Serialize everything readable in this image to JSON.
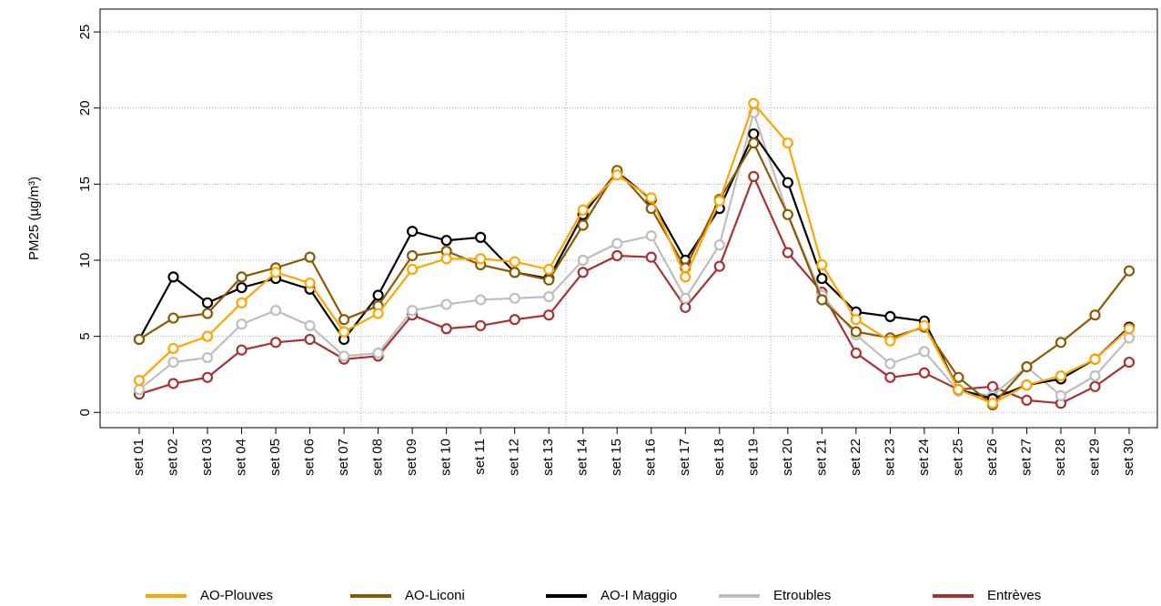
{
  "chart_data": {
    "type": "line",
    "y_label": "PM25 (µg/m³)",
    "categories": [
      "set 01",
      "set 02",
      "set 03",
      "set 04",
      "set 05",
      "set 06",
      "set 07",
      "set 08",
      "set 09",
      "set 10",
      "set 11",
      "set 12",
      "set 13",
      "set 14",
      "set 15",
      "set 16",
      "set 17",
      "set 18",
      "set 19",
      "set 20",
      "set 21",
      "set 22",
      "set 23",
      "set 24",
      "set 25",
      "set 26",
      "set 27",
      "set 28",
      "set 29",
      "set 30"
    ],
    "ylim": [
      -1.0,
      26.5
    ],
    "yticks": [
      0,
      5,
      10,
      15,
      20,
      25
    ],
    "grid": true,
    "legend": "bottom",
    "series": [
      {
        "name": "AO-Plouves",
        "color": "#ffa500",
        "values": [
          2.1,
          4.2,
          5.0,
          7.2,
          9.2,
          8.5,
          5.3,
          6.5,
          9.4,
          10.1,
          10.1,
          9.9,
          9.4,
          13.3,
          15.6,
          14.1,
          8.9,
          13.9,
          20.3,
          17.7,
          9.7,
          6.1,
          4.7,
          5.7,
          1.5,
          0.6,
          1.8,
          2.4,
          3.5,
          5.5
        ]
      },
      {
        "name": "AO-Liconi",
        "color": "#8b5a00",
        "values": [
          4.8,
          6.2,
          6.5,
          8.9,
          9.5,
          10.2,
          6.1,
          7.0,
          10.3,
          10.6,
          9.7,
          9.2,
          8.7,
          12.3,
          15.9,
          13.4,
          9.5,
          14.0,
          17.7,
          13.0,
          7.4,
          5.3,
          4.9,
          5.6,
          2.3,
          0.5,
          3.0,
          4.6,
          6.4,
          9.3
        ]
      },
      {
        "name": "AO-I Maggio",
        "color": "#000000",
        "values": [
          4.8,
          8.9,
          7.2,
          8.2,
          8.8,
          8.1,
          4.8,
          7.7,
          11.9,
          11.3,
          11.5,
          9.2,
          8.8,
          13.0,
          15.8,
          14.0,
          10.0,
          13.4,
          18.3,
          15.1,
          8.8,
          6.6,
          6.3,
          6.0,
          1.5,
          0.9,
          1.8,
          2.2,
          3.5,
          5.6
        ]
      },
      {
        "name": "Etroubles",
        "color": "#bebebe",
        "values": [
          1.5,
          3.3,
          3.6,
          5.8,
          6.7,
          5.7,
          3.7,
          3.9,
          6.7,
          7.1,
          7.4,
          7.5,
          7.6,
          10.0,
          11.1,
          11.6,
          7.5,
          11.0,
          19.7,
          13.0,
          7.7,
          5.1,
          3.2,
          4.0,
          1.4,
          1.1,
          3.0,
          1.1,
          2.4,
          4.9
        ]
      },
      {
        "name": "Entrèves",
        "color": "#a83232",
        "values": [
          1.2,
          1.9,
          2.3,
          4.1,
          4.6,
          4.8,
          3.5,
          3.7,
          6.4,
          5.5,
          5.7,
          6.1,
          6.4,
          9.2,
          10.3,
          10.2,
          6.9,
          9.6,
          15.5,
          10.5,
          7.9,
          3.9,
          2.3,
          2.6,
          1.5,
          1.7,
          0.8,
          0.6,
          1.7,
          3.3
        ]
      }
    ]
  }
}
